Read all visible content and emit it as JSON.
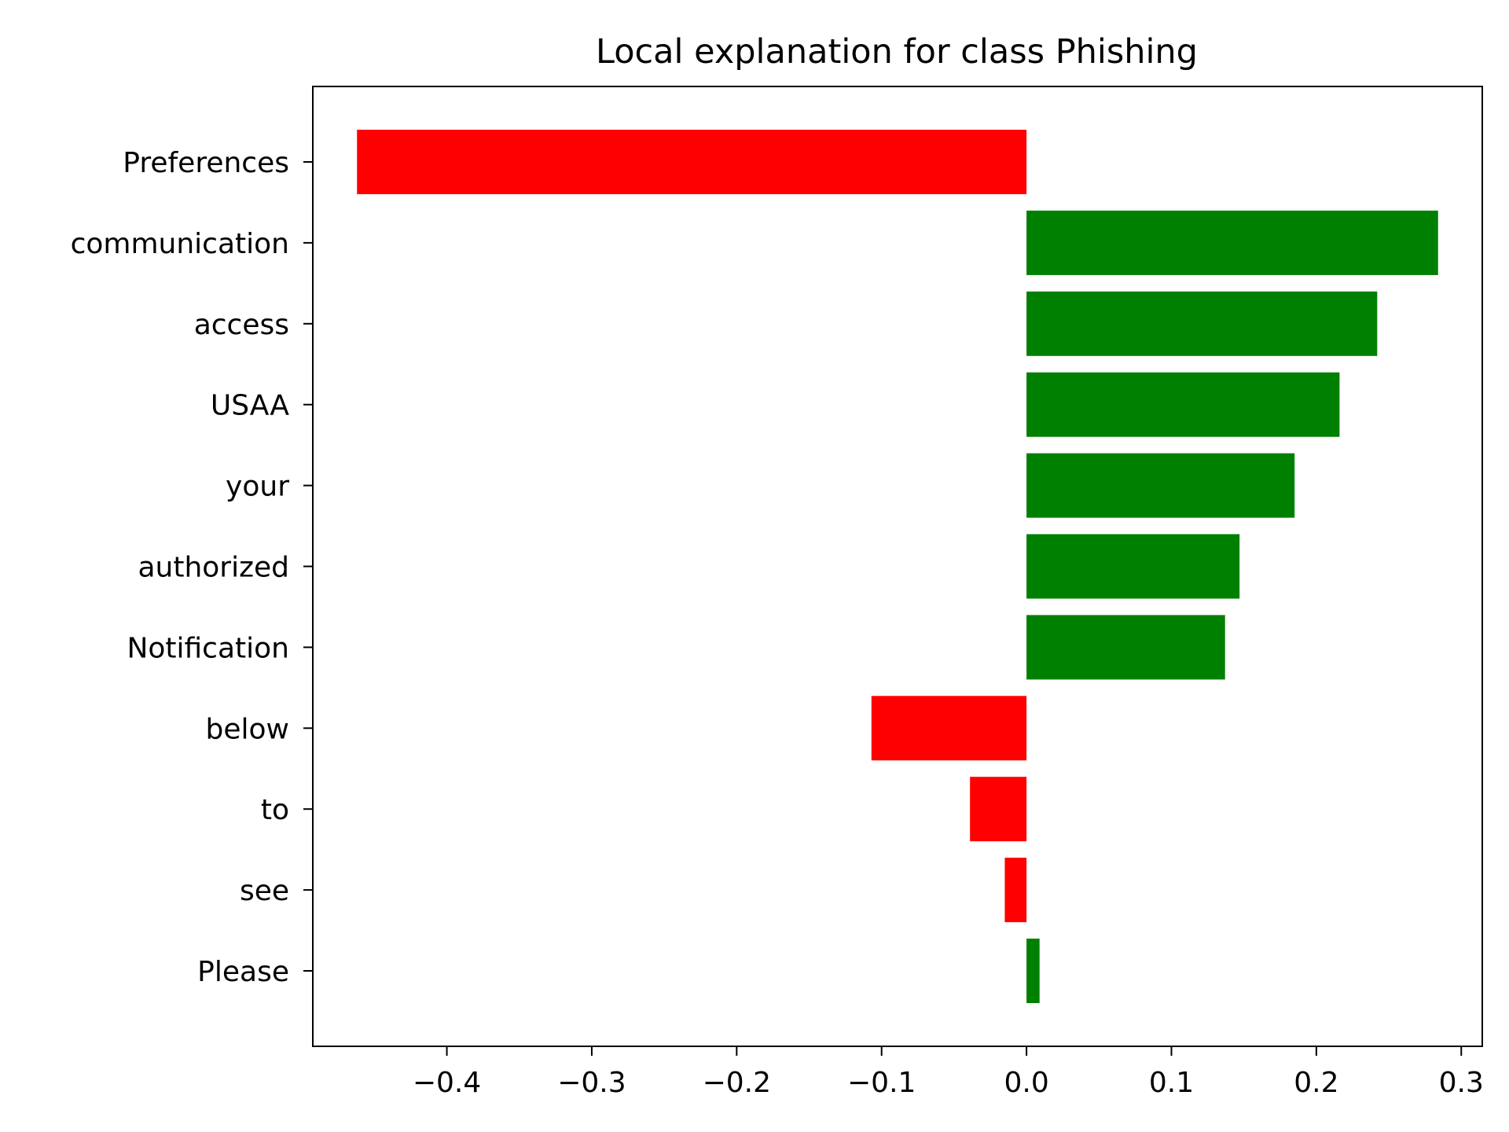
{
  "chart_data": {
    "type": "bar",
    "orientation": "horizontal",
    "title": "Local explanation for class Phishing",
    "xlabel": "",
    "ylabel": "",
    "categories": [
      "Preferences",
      "communication",
      "access",
      "USAA",
      "your",
      "authorized",
      "Notification",
      "below",
      "to",
      "see",
      "Please"
    ],
    "values": [
      -0.462,
      0.284,
      0.242,
      0.216,
      0.185,
      0.147,
      0.137,
      -0.107,
      -0.039,
      -0.015,
      0.009
    ],
    "xlim": [
      -0.4925,
      0.3145
    ],
    "xticks": [
      -0.4,
      -0.3,
      -0.2,
      -0.1,
      0.0,
      0.1,
      0.2,
      0.3
    ],
    "xtick_labels": [
      "−0.4",
      "−0.3",
      "−0.2",
      "−0.1",
      "0.0",
      "0.1",
      "0.2",
      "0.3"
    ],
    "grid": false,
    "colors": {
      "positive": "#008000",
      "negative": "#ff0000",
      "axis": "#000000",
      "background": "#ffffff"
    }
  }
}
